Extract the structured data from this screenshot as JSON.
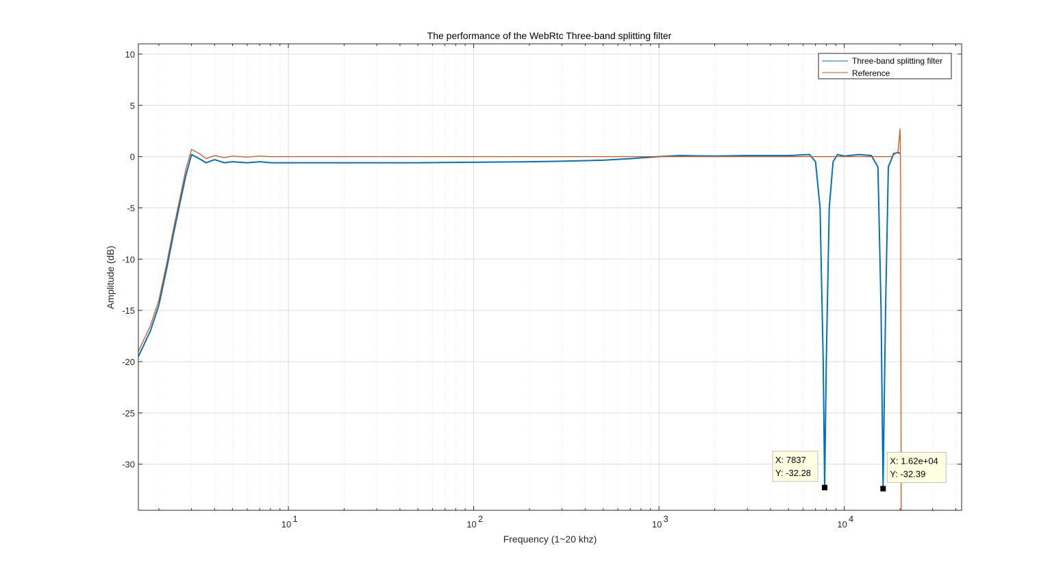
{
  "chart_data": {
    "type": "line",
    "title": "The performance of the WebRtc Three-band splitting filter",
    "xlabel": "Frequency (1~20 khz)",
    "ylabel": "Amplitude (dB)",
    "xscale": "log",
    "xlim": [
      1.55,
      43000
    ],
    "ylim": [
      -34.5,
      11
    ],
    "x_ticks": [
      10,
      100,
      1000,
      10000
    ],
    "x_tick_labels": [
      {
        "base": "10",
        "exp": "1"
      },
      {
        "base": "10",
        "exp": "2"
      },
      {
        "base": "10",
        "exp": "3"
      },
      {
        "base": "10",
        "exp": "4"
      }
    ],
    "y_ticks": [
      10,
      5,
      0,
      -5,
      -10,
      -15,
      -20,
      -25,
      -30
    ],
    "y_tick_labels": [
      "10",
      "5",
      "0",
      "-5",
      "-10",
      "-15",
      "-20",
      "-25",
      "-30"
    ],
    "grid": "on",
    "minor_grid": "on",
    "legend_position": "top-right",
    "series": [
      {
        "name": "Three-band splitting filter",
        "color": "#0072BD",
        "x": [
          1.55,
          1.8,
          2.0,
          2.2,
          2.4,
          2.6,
          2.8,
          3.0,
          3.3,
          3.6,
          4.0,
          4.5,
          5,
          6,
          7,
          8,
          10,
          15,
          20,
          30,
          50,
          100,
          200,
          300,
          500,
          700,
          1000,
          1300,
          2000,
          3000,
          5000,
          6500,
          7000,
          7400,
          7700,
          7837,
          8000,
          8300,
          8700,
          9200,
          10000,
          12000,
          14000,
          15200,
          15800,
          16200,
          16700,
          17300,
          18500,
          19500,
          20000
        ],
        "y": [
          -19.5,
          -17,
          -14.5,
          -11,
          -7.5,
          -4.5,
          -1.8,
          0.2,
          -0.2,
          -0.6,
          -0.3,
          -0.6,
          -0.5,
          -0.6,
          -0.5,
          -0.6,
          -0.6,
          -0.6,
          -0.6,
          -0.6,
          -0.6,
          -0.55,
          -0.5,
          -0.45,
          -0.35,
          -0.2,
          0,
          0.1,
          0.05,
          0.1,
          0.1,
          0.2,
          -0.5,
          -5,
          -20,
          -32.28,
          -20,
          -5,
          -0.5,
          0.2,
          0.05,
          0.2,
          0.1,
          -1,
          -15,
          -32.39,
          -15,
          -1,
          0.3,
          0.4,
          0.3
        ]
      },
      {
        "name": "Reference",
        "color": "#D95319",
        "x": [
          1.55,
          1.8,
          2.0,
          2.2,
          2.4,
          2.6,
          2.8,
          3.0,
          3.3,
          3.6,
          4.0,
          4.5,
          5,
          6,
          7,
          8,
          10,
          20,
          50,
          100,
          300,
          1000,
          3000,
          5000,
          10000,
          15000,
          18000,
          19500,
          20000,
          20150,
          20300
        ],
        "y": [
          -19,
          -16.5,
          -14,
          -10.5,
          -7,
          -4,
          -1.2,
          0.7,
          0.3,
          -0.2,
          0.1,
          -0.1,
          0.05,
          -0.05,
          0.05,
          0,
          0,
          0,
          0,
          0,
          0,
          0,
          0,
          0,
          0,
          0,
          0,
          0.5,
          2.7,
          -2,
          -34.5
        ]
      }
    ],
    "datatips": [
      {
        "x_label": "X: 7837",
        "y_label": "Y: -32.28",
        "x": 7837,
        "y": -32.28
      },
      {
        "x_label": "X: 1.62e+04",
        "y_label": "Y: -32.39",
        "x": 16200,
        "y": -32.39
      }
    ]
  }
}
